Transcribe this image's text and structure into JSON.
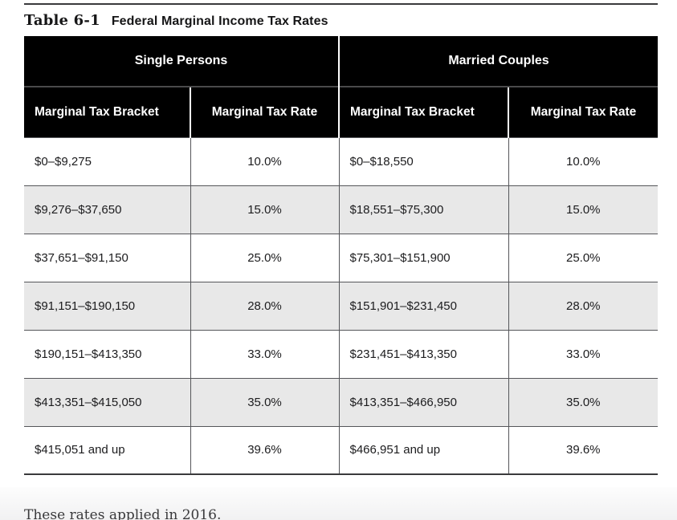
{
  "title": {
    "label": "Table 6-1",
    "heading": "Federal Marginal Income Tax Rates"
  },
  "table": {
    "groups": [
      "Single Persons",
      "Married Couples"
    ],
    "columns": [
      "Marginal Tax Bracket",
      "Marginal Tax Rate",
      "Marginal Tax Bracket",
      "Marginal Tax Rate"
    ],
    "rows": [
      [
        "$0–$9,275",
        "10.0%",
        "$0–$18,550",
        "10.0%"
      ],
      [
        "$9,276–$37,650",
        "15.0%",
        "$18,551–$75,300",
        "15.0%"
      ],
      [
        "$37,651–$91,150",
        "25.0%",
        "$75,301–$151,900",
        "25.0%"
      ],
      [
        "$91,151–$190,150",
        "28.0%",
        "$151,901–$231,450",
        "28.0%"
      ],
      [
        "$190,151–$413,350",
        "33.0%",
        "$231,451–$413,350",
        "33.0%"
      ],
      [
        "$413,351–$415,050",
        "35.0%",
        "$413,351–$466,950",
        "35.0%"
      ],
      [
        "$415,051 and up",
        "39.6%",
        "$466,951 and up",
        "39.6%"
      ]
    ]
  },
  "footer": {
    "note": "These rates applied in 2016."
  },
  "colors": {
    "header_bg": "#000000",
    "header_text": "#ffffff",
    "stripe_bg": "#e8e8e8",
    "cell_border": "#55565a",
    "rule": "#3a3a3c",
    "body_text": "#1c1c1e",
    "footnote_text": "#39393b"
  }
}
